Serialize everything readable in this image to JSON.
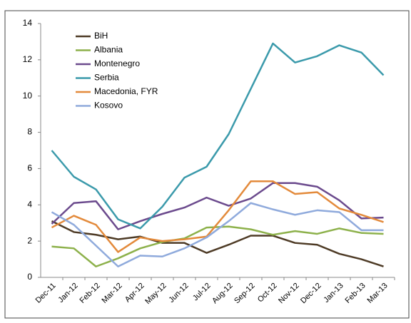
{
  "chart_data": {
    "type": "line",
    "categories": [
      "Dec-11",
      "Jan-12",
      "Feb-12",
      "Mar-12",
      "Apr-12",
      "May-12",
      "Jun-12",
      "Jul-12",
      "Aug-12",
      "Sep-12",
      "Oct-12",
      "Nov-12",
      "Dec-12",
      "Jan-13",
      "Feb-13",
      "Mar-13"
    ],
    "series": [
      {
        "name": "BiH",
        "color": "#4e3b26",
        "values": [
          3.1,
          2.5,
          2.35,
          2.1,
          2.25,
          1.9,
          1.9,
          1.35,
          1.8,
          2.3,
          2.3,
          1.9,
          1.8,
          1.3,
          1.0,
          0.6
        ]
      },
      {
        "name": "Albania",
        "color": "#8db14b",
        "values": [
          1.7,
          1.6,
          0.6,
          1.05,
          1.6,
          1.95,
          2.15,
          2.75,
          2.8,
          2.65,
          2.35,
          2.55,
          2.4,
          2.7,
          2.45,
          2.4
        ]
      },
      {
        "name": "Montenegro",
        "color": "#6b4a8d",
        "values": [
          2.95,
          4.1,
          4.2,
          2.65,
          3.1,
          3.5,
          3.85,
          4.4,
          3.95,
          4.35,
          5.2,
          5.2,
          5.0,
          4.25,
          3.25,
          3.3
        ]
      },
      {
        "name": "Serbia",
        "color": "#3b9aab",
        "values": [
          7.0,
          5.55,
          4.85,
          3.2,
          2.7,
          3.9,
          5.5,
          6.1,
          7.9,
          10.4,
          12.9,
          11.85,
          12.2,
          12.8,
          12.4,
          11.15
        ]
      },
      {
        "name": "Macedonia, FYR",
        "color": "#e38a3b",
        "values": [
          2.75,
          3.4,
          2.9,
          1.4,
          2.2,
          2.0,
          2.1,
          2.25,
          3.7,
          5.3,
          5.3,
          4.6,
          4.7,
          3.8,
          3.45,
          3.05
        ]
      },
      {
        "name": "Kosovo",
        "color": "#8faadc",
        "values": [
          3.6,
          2.9,
          1.75,
          0.6,
          1.2,
          1.15,
          1.6,
          2.2,
          3.1,
          4.1,
          3.75,
          3.45,
          3.7,
          3.6,
          2.6,
          2.6
        ]
      }
    ],
    "ylim": [
      0,
      14
    ],
    "yticks": [
      0,
      2,
      4,
      6,
      8,
      10,
      12,
      14
    ],
    "grid": false,
    "legend": "upper-left"
  }
}
